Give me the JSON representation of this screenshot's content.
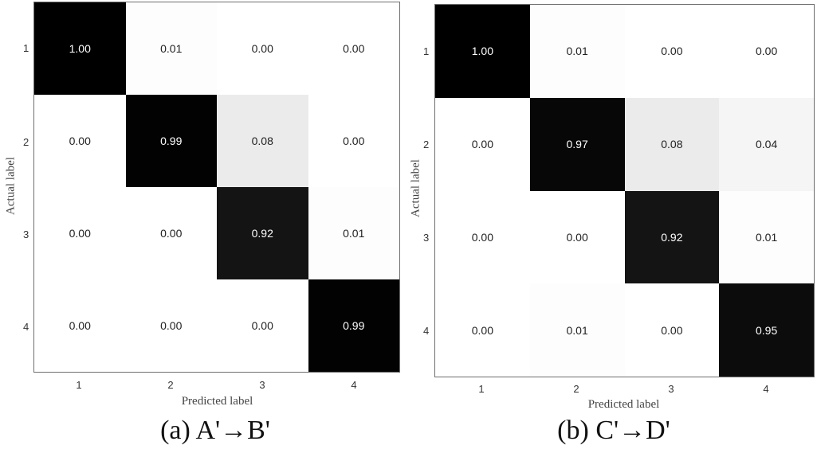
{
  "panels": [
    {
      "caption": "(a) A'→B'",
      "xlabel": "Predicted label",
      "ylabel": "Actual label",
      "xticks": [
        "1",
        "2",
        "3",
        "4"
      ],
      "yticks": [
        "1",
        "2",
        "3",
        "4"
      ],
      "matrix": [
        [
          "1.00",
          "0.01",
          "0.00",
          "0.00"
        ],
        [
          "0.00",
          "0.99",
          "0.08",
          "0.00"
        ],
        [
          "0.00",
          "0.00",
          "0.92",
          "0.01"
        ],
        [
          "0.00",
          "0.00",
          "0.00",
          "0.99"
        ]
      ]
    },
    {
      "caption": "(b) C'→D'",
      "xlabel": "Predicted label",
      "ylabel": "Actual label",
      "xticks": [
        "1",
        "2",
        "3",
        "4"
      ],
      "yticks": [
        "1",
        "2",
        "3",
        "4"
      ],
      "matrix": [
        [
          "1.00",
          "0.01",
          "0.00",
          "0.00"
        ],
        [
          "0.00",
          "0.97",
          "0.08",
          "0.04"
        ],
        [
          "0.00",
          "0.00",
          "0.92",
          "0.01"
        ],
        [
          "0.00",
          "0.01",
          "0.00",
          "0.95"
        ]
      ]
    }
  ],
  "colors": {
    "cmap_low": "#ffffff",
    "cmap_high": "#000000",
    "text_on_dark": "#ffffff",
    "text_on_light": "#222222",
    "frame": "#6e6e6e"
  },
  "chart_data": [
    {
      "type": "heatmap",
      "title": "(a) A'→B'",
      "xlabel": "Predicted label",
      "ylabel": "Actual label",
      "x": [
        "1",
        "2",
        "3",
        "4"
      ],
      "y": [
        "1",
        "2",
        "3",
        "4"
      ],
      "values": [
        [
          1.0,
          0.01,
          0.0,
          0.0
        ],
        [
          0.0,
          0.99,
          0.08,
          0.0
        ],
        [
          0.0,
          0.0,
          0.92,
          0.01
        ],
        [
          0.0,
          0.0,
          0.0,
          0.99
        ]
      ],
      "colormap": "Greys",
      "zlim": [
        0,
        1
      ]
    },
    {
      "type": "heatmap",
      "title": "(b) C'→D'",
      "xlabel": "Predicted label",
      "ylabel": "Actual label",
      "x": [
        "1",
        "2",
        "3",
        "4"
      ],
      "y": [
        "1",
        "2",
        "3",
        "4"
      ],
      "values": [
        [
          1.0,
          0.01,
          0.0,
          0.0
        ],
        [
          0.0,
          0.97,
          0.08,
          0.04
        ],
        [
          0.0,
          0.0,
          0.92,
          0.01
        ],
        [
          0.0,
          0.01,
          0.0,
          0.95
        ]
      ],
      "colormap": "Greys",
      "zlim": [
        0,
        1
      ]
    }
  ]
}
